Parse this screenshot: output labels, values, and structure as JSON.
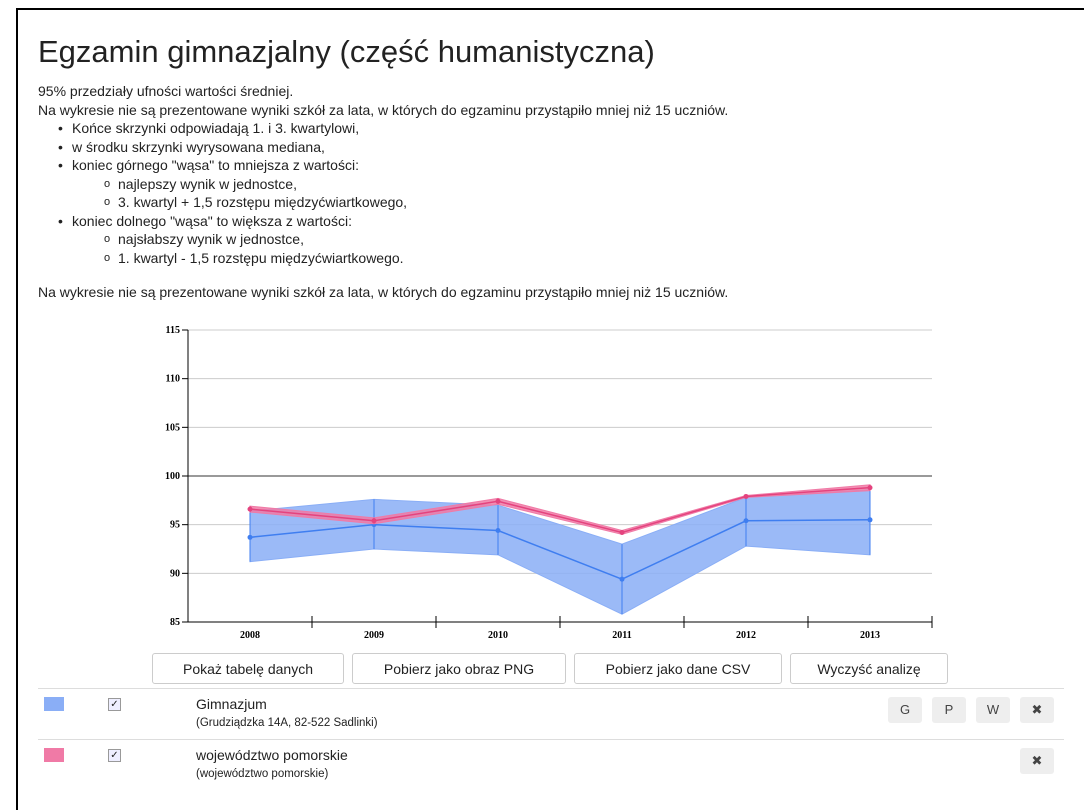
{
  "header": {
    "title": "Egzamin gimnazjalny (część humanistyczna)"
  },
  "intro": [
    "95% przedziały ufności wartości średniej.",
    "Na wykresie nie są prezentowane wyniki szkół za lata, w których do egzaminu przystąpiło mniej niż 15 uczniów."
  ],
  "bullets": [
    {
      "text": "Końce skrzynki odpowiadają 1. i 3. kwartylowi,"
    },
    {
      "text": "w środku skrzynki wyrysowana mediana,"
    },
    {
      "text": "koniec górnego \"wąsa\" to mniejsza z wartości:",
      "items": [
        "najlepszy wynik w jednostce,",
        "3. kwartyl + 1,5 rozstępu międzyćwiartkowego,"
      ]
    },
    {
      "text": "koniec dolnego \"wąsa\" to większa z wartości:",
      "items": [
        "najsłabszy wynik w jednostce,",
        "1. kwartyl - 1,5 rozstępu międzyćwiartkowego."
      ]
    }
  ],
  "note": "Na wykresie nie są prezentowane wyniki szkół za lata, w których do egzaminu przystąpiło mniej niż 15 uczniów.",
  "buttons": [
    "Pokaż tabelę danych",
    "Pobierz jako obraz PNG",
    "Pobierz jako dane CSV",
    "Wyczyść analizę"
  ],
  "chart_data": {
    "type": "band",
    "categories": [
      "2008",
      "2009",
      "2010",
      "2011",
      "2012",
      "2013"
    ],
    "ylim": [
      85,
      115
    ],
    "yticks": [
      85,
      90,
      95,
      100,
      105,
      110,
      115
    ],
    "grid": true,
    "reference": 100,
    "series": [
      {
        "name": "Gimnazjum",
        "detail": "(Grudziądzka 14A, 82-522 Sadlinki)",
        "color": "#3f7ef0",
        "fill": "#8aaef6",
        "actions": [
          "G",
          "P",
          "W",
          "✖"
        ],
        "values": [
          93.7,
          95.0,
          94.4,
          89.4,
          95.4,
          95.5
        ],
        "upper": [
          96.4,
          97.6,
          97.0,
          93.0,
          97.8,
          98.6
        ],
        "lower": [
          91.2,
          92.5,
          91.9,
          85.8,
          92.8,
          91.9
        ]
      },
      {
        "name": "województwo pomorskie",
        "detail": "(województwo pomorskie)",
        "color": "#e4437e",
        "fill": "#f07aa6",
        "actions": [
          "✖"
        ],
        "values": [
          96.6,
          95.4,
          97.4,
          94.2,
          97.9,
          98.8
        ],
        "upper": [
          96.9,
          95.7,
          97.7,
          94.4,
          98.0,
          99.1
        ],
        "lower": [
          96.3,
          95.1,
          97.1,
          94.0,
          97.8,
          98.5
        ]
      }
    ]
  }
}
